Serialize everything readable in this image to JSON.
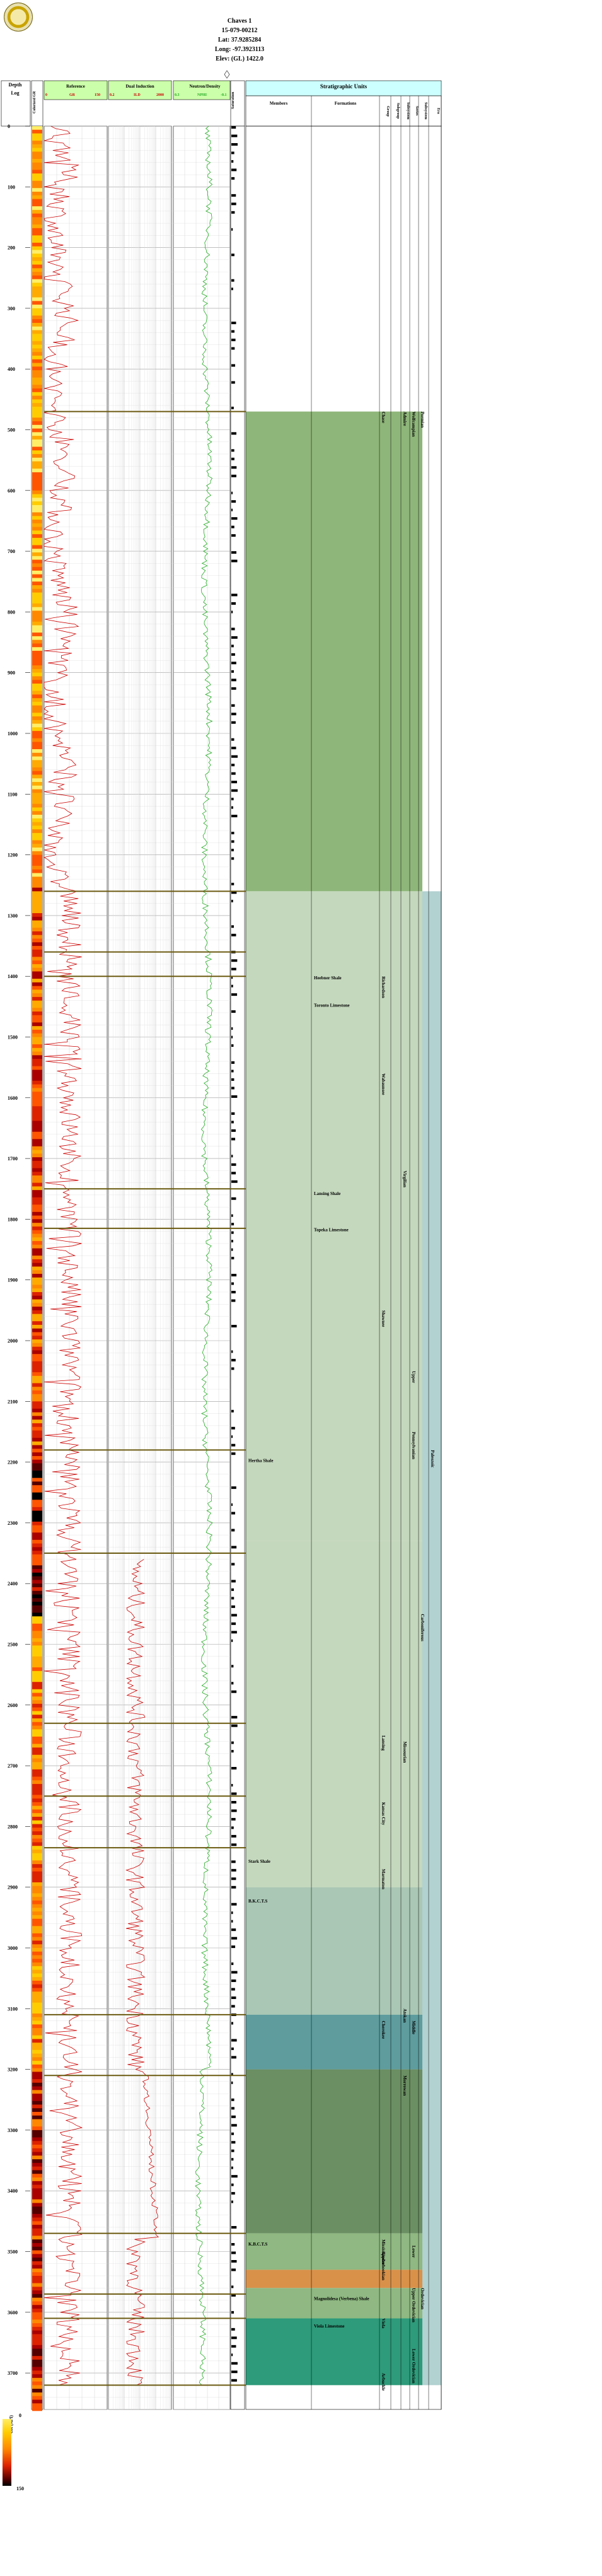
{
  "well": {
    "name": "Chaves 1",
    "api": "15-079-00212",
    "lat": "Lat: 37.9285284",
    "long": "Long: -97.3923113",
    "elev": "Elev: (GL) 1422.0"
  },
  "logo": "kgs-seal",
  "tracks": {
    "depth_title": "Depth",
    "depth_sub": "Log",
    "gamma_title": "Colorized GR",
    "ref_title": "Reference",
    "ref_curve": "GR",
    "ref_min": "0",
    "ref_max": "150",
    "ind_title": "Dual Induction",
    "ind_curve": "ILD",
    "ind_min": "0.2",
    "ind_max": "2000",
    "neu_title": "Neutron/Density",
    "neu_curve": "NPHI",
    "neu_min": "0.3",
    "neu_max": "-0.1",
    "sat_title": "Saturation"
  },
  "strat_header": {
    "title": "Stratigraphic Units",
    "members": "Members",
    "formations": "Formations",
    "groups": [
      "Group",
      "Subgroup",
      "Subsystem",
      "Series",
      "Subsystem",
      "Era"
    ]
  },
  "depth_ticks": [
    "0",
    "100",
    "200",
    "300",
    "400",
    "500",
    "600",
    "700",
    "800",
    "900",
    "1000",
    "1100",
    "1200",
    "1300",
    "1400",
    "1500",
    "1600",
    "1700",
    "1800",
    "1900",
    "2000",
    "2100",
    "2200",
    "2300",
    "2400",
    "2500",
    "2600",
    "2700",
    "2800",
    "2900",
    "3000",
    "3100",
    "3200",
    "3300",
    "3400",
    "3500",
    "3600",
    "3700"
  ],
  "members": [
    "Hertha Shale",
    "Stark Shale",
    "B.K.C.T.S",
    "K.B.C.T.S"
  ],
  "formations": [
    "Heebner Shale",
    "Toronto Limestone",
    "Lansing Shale",
    "Topeka Limestone",
    "Magnolidesa (Verbena) Shale",
    "Viola Limestone"
  ],
  "vertical_labels": {
    "groups": [
      "Chase",
      "Richardson",
      "Wabaunsee",
      "Shawnee",
      "Lansing",
      "Kansas City",
      "Marmaton",
      "Cherokee",
      "Mississippian",
      "Kinderhookian",
      "Viola",
      "Arbuckle"
    ],
    "subgroups": [
      "Admire",
      "Virgilian",
      "Missourian",
      "Atokan",
      "Morrowan"
    ],
    "series": [
      "Wolfcampian",
      "Upper",
      "Pennsylvanian",
      "Middle",
      "Lower",
      "Upper Ordovician",
      "Lower Ordovician"
    ],
    "systems": [
      "Permian",
      "Carboniferous",
      "Ordovician"
    ],
    "era": [
      "Paleozoic"
    ]
  },
  "legend": {
    "title": "GR (API)",
    "min": "0",
    "max": "150"
  },
  "colors": {
    "permian": "#8fb67a",
    "penn_light": "#c4d8bd",
    "penn_missourian": "#a9c7b4",
    "atokan": "#7fb3b3",
    "cherokee": "#5e9c9e",
    "mississippian": "#6b8f63",
    "kinderhookian": "#8fb882",
    "misc_orange": "#d9914a",
    "viola": "#2e9b7a",
    "gr_curve": "#cc0000",
    "nphi_curve": "#22aa22",
    "tops_line": "#6b5a10",
    "header_green": "#ccffaa",
    "header_cyan": "#ccffff"
  }
}
